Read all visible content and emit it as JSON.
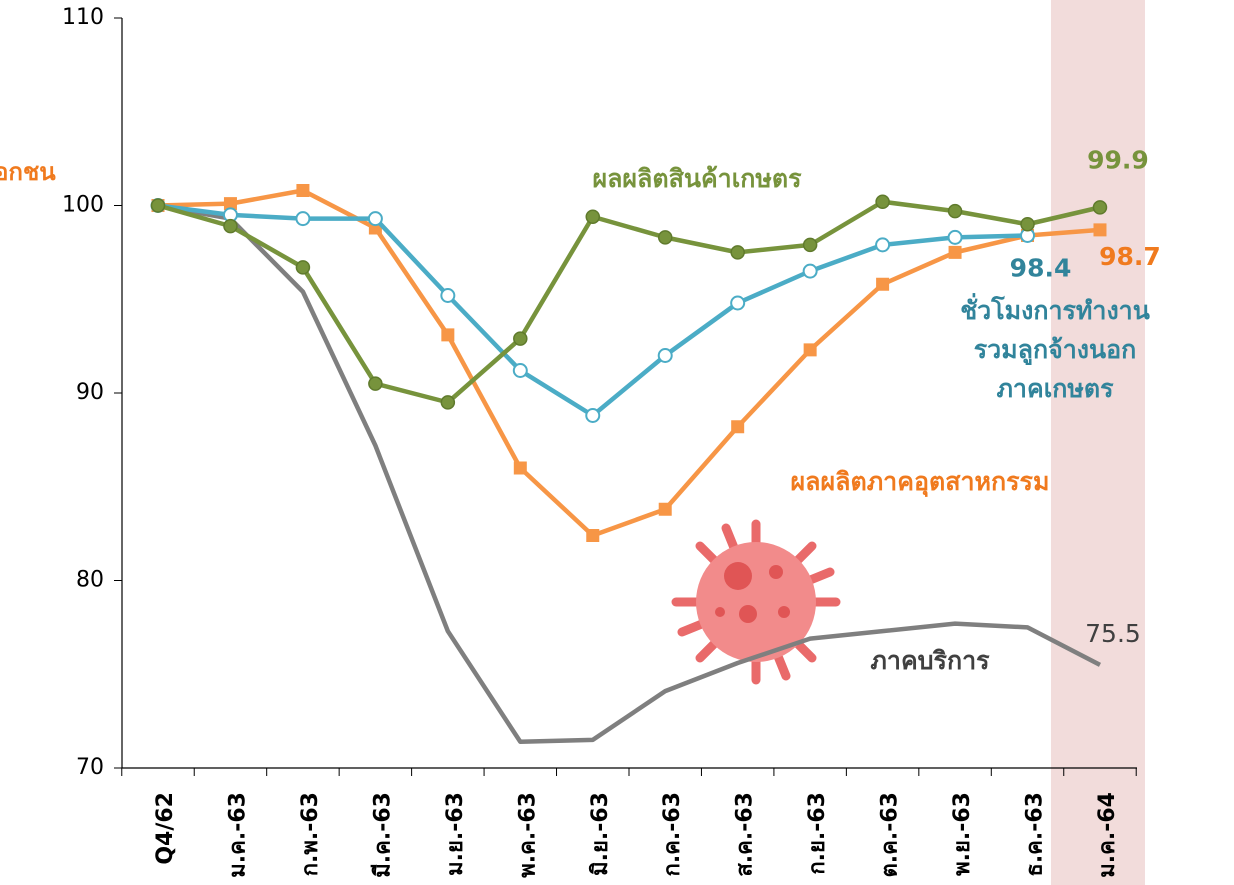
{
  "chart_data": {
    "type": "line",
    "y_axis_label": "อกชน",
    "categories": [
      "Q4/62",
      "ม.ค.-63",
      "ก.พ.-63",
      "มี.ค.-63",
      "ม.ย.-63",
      "พ.ค.-63",
      "มิ.ย.-63",
      "ก.ค.-63",
      "ส.ค.-63",
      "ก.ย.-63",
      "ต.ค.-63",
      "พ.ย.-63",
      "ธ.ค.-63",
      "ม.ค.-64"
    ],
    "ylim": [
      70,
      110
    ],
    "yticks": [
      70,
      80,
      90,
      100,
      110
    ],
    "series": [
      {
        "name": "ภาคบริการ",
        "color": "#7f7f7f",
        "marker": "none",
        "values": [
          100,
          99.3,
          95.4,
          87.2,
          77.3,
          71.4,
          71.5,
          74.1,
          75.6,
          76.9,
          77.3,
          77.7,
          77.5,
          75.5
        ],
        "value_labels": [
          null,
          null,
          null,
          null,
          null,
          null,
          null,
          null,
          null,
          null,
          null,
          null,
          null,
          "75.5"
        ]
      },
      {
        "name": "ผลผลิตภาคอุตสาหกรรม",
        "color": "#f79646",
        "marker": "square",
        "values": [
          100,
          100.1,
          100.8,
          98.8,
          93.1,
          86.0,
          82.4,
          83.8,
          88.2,
          92.3,
          95.8,
          97.5,
          98.4,
          98.7
        ],
        "value_labels": [
          null,
          null,
          null,
          null,
          null,
          null,
          null,
          null,
          null,
          null,
          null,
          null,
          null,
          "98.7"
        ]
      },
      {
        "name": "ชั่วโมงการทำงาน\nรวมลูกจ้างนอก\nภาคเกษตร",
        "color": "#4bacc6",
        "marker": "hollow-circle",
        "values": [
          100,
          99.5,
          99.3,
          99.3,
          95.2,
          91.2,
          88.8,
          92.0,
          94.8,
          96.5,
          97.9,
          98.3,
          98.4,
          null
        ],
        "value_labels": [
          null,
          null,
          null,
          null,
          null,
          null,
          null,
          null,
          null,
          null,
          null,
          null,
          "98.4",
          null
        ]
      },
      {
        "name": "ผลผลิตสินค้าเกษตร",
        "color": "#77933c",
        "marker": "circle",
        "values": [
          100,
          98.9,
          96.7,
          90.5,
          89.5,
          92.9,
          99.4,
          98.3,
          97.5,
          97.9,
          100.2,
          99.7,
          99.0,
          99.9
        ],
        "value_labels": [
          null,
          null,
          null,
          null,
          null,
          null,
          null,
          null,
          null,
          null,
          null,
          null,
          null,
          "99.9"
        ]
      }
    ],
    "highlight_category": 13,
    "highlight_color": "#f2dcdb"
  }
}
